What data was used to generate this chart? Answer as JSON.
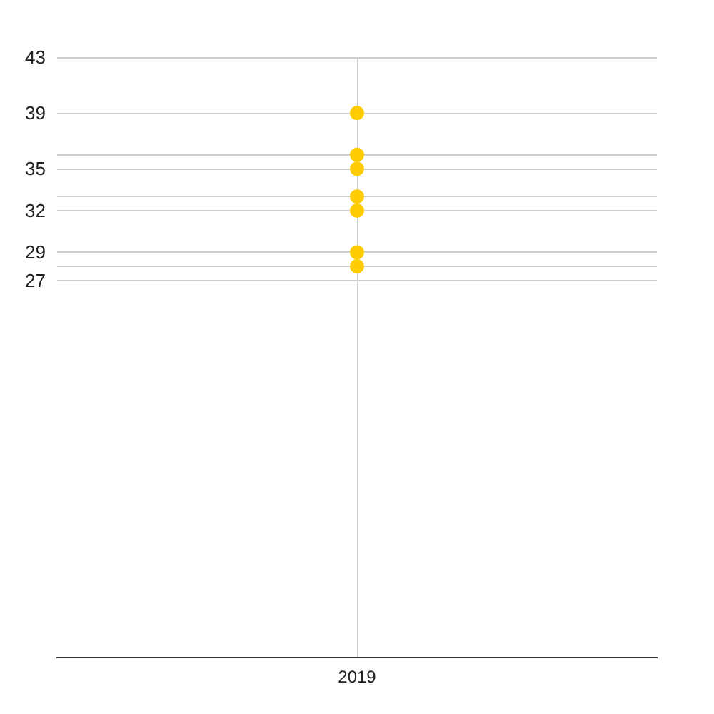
{
  "chart_data": {
    "type": "scatter",
    "categories": [
      "2019"
    ],
    "series": [
      {
        "color": "#ffcc00",
        "values": [
          39
        ]
      },
      {
        "color": "#ffcc00",
        "values": [
          36
        ]
      },
      {
        "color": "#ffcc00",
        "values": [
          35
        ]
      },
      {
        "color": "#ffcc00",
        "values": [
          33
        ]
      },
      {
        "color": "#ffcc00",
        "values": [
          32
        ]
      },
      {
        "color": "#ffcc00",
        "values": [
          29
        ]
      },
      {
        "color": "#ffcc00",
        "values": [
          28
        ]
      }
    ],
    "ylim": [
      0,
      43
    ],
    "yticks": [
      {
        "value": 0,
        "label": null
      },
      27,
      {
        "value": 28,
        "label": null
      },
      29,
      32,
      {
        "value": 33,
        "label": null
      },
      35,
      {
        "value": 36,
        "label": null
      },
      39,
      43
    ],
    "grid": true,
    "marker": "circle"
  }
}
